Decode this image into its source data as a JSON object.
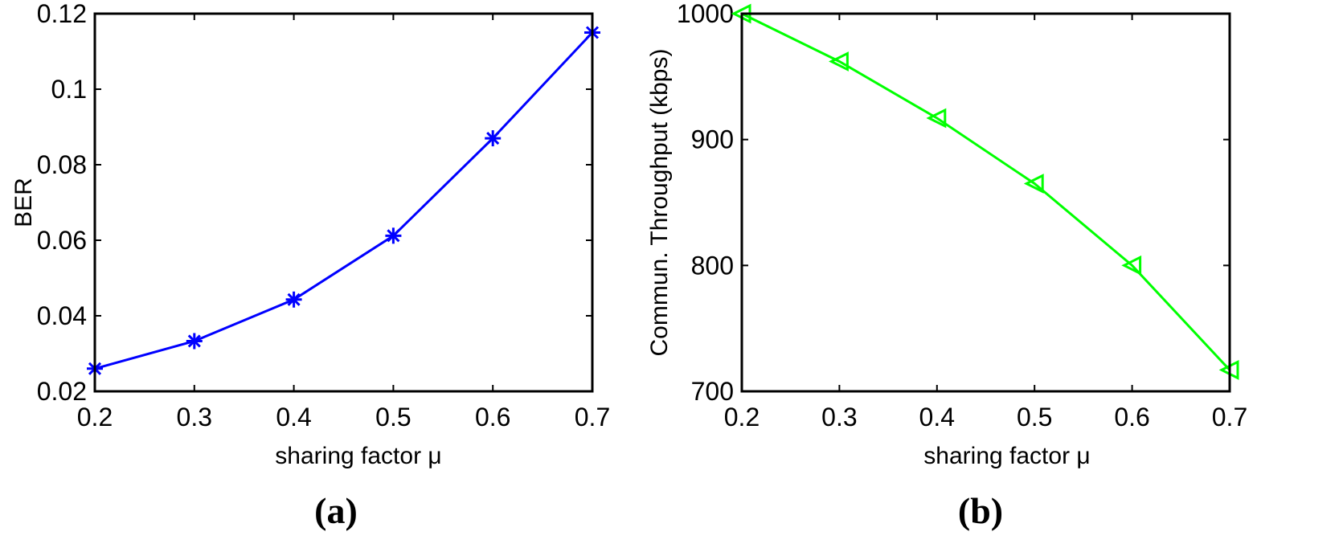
{
  "chart_data": [
    {
      "type": "line",
      "panel_label": "(a)",
      "xlabel": "sharing factor  μ",
      "ylabel": "BER",
      "xlim": [
        0.2,
        0.7
      ],
      "ylim": [
        0.02,
        0.12
      ],
      "xticks": [
        0.2,
        0.3,
        0.4,
        0.5,
        0.6,
        0.7
      ],
      "xtick_labels": [
        "0.2",
        "0.3",
        "0.4",
        "0.5",
        "0.6",
        "0.7"
      ],
      "yticks": [
        0.02,
        0.04,
        0.06,
        0.08,
        0.1,
        0.12
      ],
      "ytick_labels": [
        "0.02",
        "0.04",
        "0.06",
        "0.08",
        "0.1",
        "0.12"
      ],
      "grid": false,
      "series": [
        {
          "color": "#0000ff",
          "marker": "asterisk",
          "x": [
            0.2,
            0.3,
            0.4,
            0.5,
            0.6,
            0.7
          ],
          "y": [
            0.026,
            0.0333,
            0.0443,
            0.0612,
            0.087,
            0.115
          ]
        }
      ]
    },
    {
      "type": "line",
      "panel_label": "(b)",
      "xlabel": "sharing factor  μ",
      "ylabel": "Commun. Throughput (kbps)",
      "xlim": [
        0.2,
        0.7
      ],
      "ylim": [
        700,
        1000
      ],
      "xticks": [
        0.2,
        0.3,
        0.4,
        0.5,
        0.6,
        0.7
      ],
      "xtick_labels": [
        "0.2",
        "0.3",
        "0.4",
        "0.5",
        "0.6",
        "0.7"
      ],
      "yticks": [
        700,
        800,
        900,
        1000
      ],
      "ytick_labels": [
        "700",
        "800",
        "900",
        "1000"
      ],
      "grid": false,
      "series": [
        {
          "color": "#00ff00",
          "marker": "triangle-left",
          "x": [
            0.2,
            0.3,
            0.4,
            0.5,
            0.6,
            0.7
          ],
          "y": [
            1000,
            962,
            917,
            865,
            800,
            717
          ]
        }
      ]
    }
  ]
}
